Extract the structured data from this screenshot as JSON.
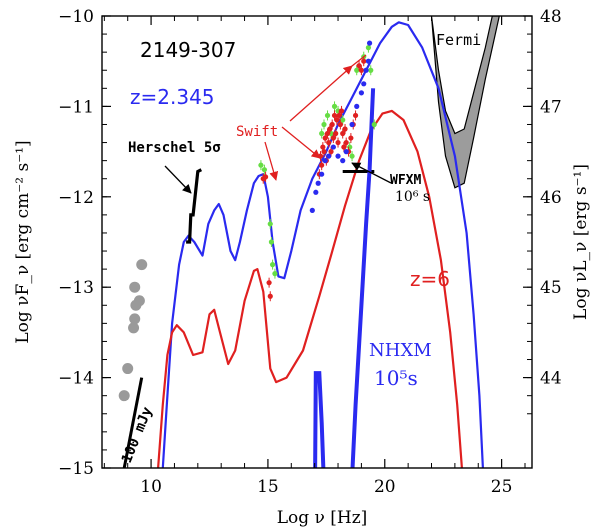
{
  "chart_data": {
    "type": "line",
    "title": "2149-307",
    "xlabel": "Log ν [Hz]",
    "ylabel_left": "Log νF_ν [erg cm⁻² s⁻¹]",
    "ylabel_right": "Log νL_ν [erg s⁻¹]",
    "xlim": [
      7.9,
      26.3
    ],
    "ylim": [
      -15,
      -10
    ],
    "right_axis": {
      "offset": 58.0,
      "ticks": [
        44,
        45,
        46,
        47,
        48
      ]
    },
    "x_ticks": [
      10,
      15,
      20,
      25
    ],
    "y_ticks": [
      -15,
      -14,
      -13,
      -12,
      -11,
      -10
    ],
    "annotations": {
      "source_name": "2149-307",
      "redshift_blue": "z=2.345",
      "redshift_red": "z=6",
      "fermi": "Fermi",
      "swift": "Swift",
      "herschel": "Herschel 5σ",
      "wfxm_line1": "WFXM",
      "wfxm_line2": "10⁶ s",
      "nhxm_line1": "NHXM",
      "nhxm_line2": "10⁵s",
      "mjy": "100 mJy"
    },
    "colors": {
      "blue": "#2a2af0",
      "red": "#e02020",
      "green": "#66dd44",
      "gray": "#9a9a9a",
      "fermi_fill": "#9c9c9c",
      "black": "#000000"
    },
    "series": [
      {
        "name": "z=2.345",
        "color": "#2a2af0",
        "points": [
          [
            10.5,
            -15
          ],
          [
            10.7,
            -14.2
          ],
          [
            10.9,
            -13.4
          ],
          [
            11.2,
            -12.75
          ],
          [
            11.4,
            -12.5
          ],
          [
            11.6,
            -12.43
          ],
          [
            11.85,
            -12.5
          ],
          [
            12.2,
            -12.65
          ],
          [
            12.45,
            -12.3
          ],
          [
            12.7,
            -12.15
          ],
          [
            12.9,
            -12.08
          ],
          [
            13.1,
            -12.2
          ],
          [
            13.4,
            -12.6
          ],
          [
            13.6,
            -12.7
          ],
          [
            13.8,
            -12.5
          ],
          [
            14.1,
            -12.15
          ],
          [
            14.4,
            -11.85
          ],
          [
            14.6,
            -11.77
          ],
          [
            14.8,
            -11.75
          ],
          [
            15.0,
            -12.0
          ],
          [
            15.2,
            -12.5
          ],
          [
            15.45,
            -12.88
          ],
          [
            15.7,
            -12.9
          ],
          [
            16.0,
            -12.6
          ],
          [
            16.4,
            -12.15
          ],
          [
            16.9,
            -11.8
          ],
          [
            17.5,
            -11.5
          ],
          [
            18.0,
            -11.2
          ],
          [
            18.6,
            -10.9
          ],
          [
            19.2,
            -10.6
          ],
          [
            19.8,
            -10.3
          ],
          [
            20.3,
            -10.12
          ],
          [
            20.6,
            -10.07
          ],
          [
            21.0,
            -10.1
          ],
          [
            21.6,
            -10.35
          ],
          [
            22.3,
            -10.8
          ],
          [
            23.0,
            -11.55
          ],
          [
            23.5,
            -12.4
          ],
          [
            23.8,
            -13.3
          ],
          [
            24.05,
            -14.2
          ],
          [
            24.2,
            -15
          ]
        ]
      },
      {
        "name": "z=6",
        "color": "#e02020",
        "points": [
          [
            10.3,
            -15
          ],
          [
            10.5,
            -14.3
          ],
          [
            10.7,
            -13.75
          ],
          [
            10.9,
            -13.5
          ],
          [
            11.1,
            -13.42
          ],
          [
            11.4,
            -13.5
          ],
          [
            11.8,
            -13.75
          ],
          [
            12.2,
            -13.72
          ],
          [
            12.5,
            -13.3
          ],
          [
            12.7,
            -13.25
          ],
          [
            12.95,
            -13.5
          ],
          [
            13.3,
            -13.85
          ],
          [
            13.6,
            -13.7
          ],
          [
            14.0,
            -13.15
          ],
          [
            14.4,
            -12.82
          ],
          [
            14.55,
            -12.8
          ],
          [
            14.8,
            -13.05
          ],
          [
            15.1,
            -13.9
          ],
          [
            15.35,
            -14.05
          ],
          [
            15.8,
            -14.0
          ],
          [
            16.5,
            -13.7
          ],
          [
            17.2,
            -13.1
          ],
          [
            17.7,
            -12.65
          ],
          [
            18.3,
            -12.1
          ],
          [
            18.9,
            -11.6
          ],
          [
            19.4,
            -11.27
          ],
          [
            19.9,
            -11.08
          ],
          [
            20.3,
            -11.05
          ],
          [
            20.8,
            -11.15
          ],
          [
            21.4,
            -11.5
          ],
          [
            21.9,
            -12.0
          ],
          [
            22.4,
            -12.7
          ],
          [
            22.8,
            -13.5
          ],
          [
            23.1,
            -14.3
          ],
          [
            23.3,
            -15
          ]
        ]
      }
    ],
    "swift_red": [
      [
        17.2,
        -11.75
      ],
      [
        17.25,
        -11.55
      ],
      [
        17.3,
        -11.65
      ],
      [
        17.35,
        -11.45
      ],
      [
        17.4,
        -11.5
      ],
      [
        17.45,
        -11.35
      ],
      [
        17.5,
        -11.6
      ],
      [
        17.55,
        -11.3
      ],
      [
        17.6,
        -11.4
      ],
      [
        17.65,
        -11.25
      ],
      [
        17.7,
        -11.5
      ],
      [
        17.75,
        -11.2
      ],
      [
        17.8,
        -11.35
      ],
      [
        17.85,
        -11.1
      ],
      [
        17.9,
        -11.3
      ],
      [
        17.95,
        -11.15
      ],
      [
        18.0,
        -11.4
      ],
      [
        18.05,
        -11.1
      ],
      [
        18.1,
        -11.2
      ],
      [
        18.15,
        -11.05
      ],
      [
        18.2,
        -11.3
      ],
      [
        18.25,
        -11.45
      ],
      [
        18.3,
        -11.25
      ],
      [
        18.35,
        -11.4
      ],
      [
        18.45,
        -11.5
      ],
      [
        18.55,
        -11.35
      ],
      [
        18.65,
        -11.2
      ],
      [
        18.75,
        -11.1
      ],
      [
        14.8,
        -11.8
      ],
      [
        14.9,
        -11.78
      ],
      [
        15.05,
        -12.95
      ],
      [
        15.1,
        -13.1
      ],
      [
        18.9,
        -10.55
      ],
      [
        19.0,
        -10.6
      ],
      [
        19.1,
        -10.5
      ]
    ],
    "swift_green": [
      [
        14.7,
        -11.65
      ],
      [
        14.85,
        -11.7
      ],
      [
        15.1,
        -12.3
      ],
      [
        15.15,
        -12.5
      ],
      [
        15.2,
        -12.75
      ],
      [
        15.3,
        -12.85
      ],
      [
        17.3,
        -11.3
      ],
      [
        17.4,
        -11.2
      ],
      [
        17.55,
        -11.1
      ],
      [
        17.7,
        -11.3
      ],
      [
        17.85,
        -11.0
      ],
      [
        18.0,
        -11.05
      ],
      [
        18.2,
        -11.15
      ],
      [
        18.5,
        -11.45
      ],
      [
        18.6,
        -11.55
      ],
      [
        18.8,
        -10.6
      ],
      [
        19.1,
        -10.45
      ],
      [
        19.3,
        -10.35
      ],
      [
        19.4,
        -10.6
      ],
      [
        19.55,
        -11.2
      ]
    ],
    "swift_blue": [
      [
        16.9,
        -12.15
      ],
      [
        17.05,
        -11.95
      ],
      [
        17.15,
        -11.85
      ],
      [
        17.3,
        -11.75
      ],
      [
        17.45,
        -11.6
      ],
      [
        17.6,
        -11.55
      ],
      [
        17.8,
        -11.45
      ],
      [
        18.0,
        -11.55
      ],
      [
        18.2,
        -11.6
      ],
      [
        18.35,
        -11.5
      ],
      [
        18.6,
        -11.2
      ],
      [
        18.8,
        -11.0
      ],
      [
        19.0,
        -10.85
      ],
      [
        19.1,
        -10.75
      ],
      [
        19.2,
        -10.6
      ],
      [
        19.3,
        -10.5
      ],
      [
        19.35,
        -10.3
      ]
    ],
    "gray_points": [
      [
        9.6,
        -12.75
      ],
      [
        9.3,
        -13.0
      ],
      [
        9.5,
        -13.15
      ],
      [
        9.35,
        -13.2
      ],
      [
        9.3,
        -13.35
      ],
      [
        9.25,
        -13.45
      ],
      [
        9.0,
        -13.9
      ],
      [
        8.85,
        -14.2
      ]
    ],
    "herschel_limit": [
      [
        11.5,
        -12.5
      ],
      [
        11.65,
        -12.5
      ],
      [
        11.7,
        -12.2
      ],
      [
        11.8,
        -12.2
      ],
      [
        12.0,
        -11.72
      ],
      [
        12.15,
        -11.7
      ]
    ],
    "mjy_line": [
      [
        8.85,
        -15
      ],
      [
        9.6,
        -14.0
      ]
    ],
    "wfxm_limit": [
      [
        18.2,
        -11.72
      ],
      [
        19.55,
        -11.72
      ]
    ],
    "nhxm_curve": [
      [
        17.0,
        -15.7
      ],
      [
        17.05,
        -13.95
      ],
      [
        17.2,
        -13.95
      ],
      [
        17.3,
        -14.5
      ],
      [
        17.4,
        -15.2
      ],
      [
        17.5,
        -15.7
      ]
    ],
    "nhxm_right": [
      [
        18.6,
        -15.1
      ],
      [
        18.75,
        -14.3
      ],
      [
        19.0,
        -13.2
      ],
      [
        19.2,
        -12.3
      ],
      [
        19.35,
        -11.7
      ],
      [
        19.45,
        -11.1
      ],
      [
        19.5,
        -10.8
      ]
    ],
    "fermi_band_upper": [
      [
        22.0,
        -10.0
      ],
      [
        22.3,
        -10.6
      ],
      [
        22.6,
        -11.05
      ],
      [
        23.0,
        -11.3
      ],
      [
        23.4,
        -11.25
      ],
      [
        23.8,
        -10.85
      ],
      [
        24.3,
        -10.35
      ],
      [
        24.6,
        -10.0
      ]
    ],
    "fermi_band_lower": [
      [
        22.0,
        -10.0
      ],
      [
        22.3,
        -10.95
      ],
      [
        22.6,
        -11.55
      ],
      [
        23.0,
        -11.9
      ],
      [
        23.4,
        -11.85
      ],
      [
        23.8,
        -11.35
      ],
      [
        24.3,
        -10.7
      ],
      [
        24.9,
        -10.0
      ]
    ],
    "grid": false
  }
}
